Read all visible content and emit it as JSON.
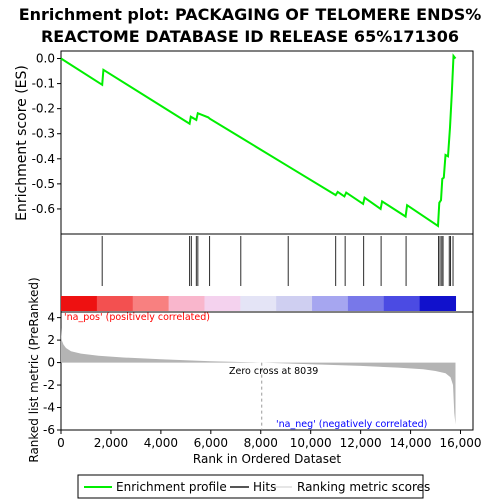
{
  "colors": {
    "es_line": "#00ee00",
    "hit_line": "#2b2b2b",
    "metric_fill": "#b4b4b4",
    "axis": "#000000",
    "legend_border": "#000000",
    "pos_label": "#ff0000",
    "neg_label": "#0000ff",
    "zero_dash": "#9a9a9a",
    "band": [
      "#ee1111",
      "#f35050",
      "#f88080",
      "#f9b6cc",
      "#f4d2ee",
      "#e4e4f6",
      "#cfcff1",
      "#a6a6f0",
      "#7878e9",
      "#4b4be3",
      "#1111cc"
    ]
  },
  "chart_data": [
    {
      "type": "line",
      "title": [
        "Enrichment plot: PACKAGING OF TELOMERE ENDS%",
        "REACTOME DATABASE ID RELEASE 65%171306"
      ],
      "ylabel": "Enrichment score (ES)",
      "ylim": [
        -0.7,
        0.03
      ],
      "yticks": [
        0.0,
        -0.1,
        -0.2,
        -0.3,
        -0.4,
        -0.5,
        -0.6
      ],
      "ytick_labels": [
        "0.0",
        "-0.1",
        "-0.2",
        "-0.3",
        "-0.4",
        "-0.5",
        "-0.6"
      ],
      "xlim": [
        0,
        16500
      ],
      "grid": false,
      "series": [
        {
          "name": "Enrichment profile",
          "x": [
            0,
            1650,
            1700,
            5150,
            5200,
            5420,
            5480,
            5900,
            5960,
            7200,
            9100,
            11000,
            11080,
            11350,
            11420,
            12100,
            12160,
            12800,
            12860,
            13800,
            13860,
            15100,
            15150,
            15220,
            15270,
            15330,
            15400,
            15500,
            15580,
            15650,
            15720,
            15800
          ],
          "y": [
            0.0,
            -0.105,
            -0.045,
            -0.26,
            -0.232,
            -0.245,
            -0.218,
            -0.235,
            -0.24,
            -0.315,
            -0.43,
            -0.545,
            -0.532,
            -0.55,
            -0.535,
            -0.58,
            -0.555,
            -0.6,
            -0.57,
            -0.63,
            -0.585,
            -0.668,
            -0.575,
            -0.565,
            -0.48,
            -0.475,
            -0.385,
            -0.39,
            -0.275,
            -0.14,
            0.01,
            0.0
          ]
        }
      ]
    },
    {
      "type": "scatter",
      "legend_name": "Hits",
      "hit_positions": [
        1650,
        5150,
        5220,
        5420,
        5480,
        5950,
        7200,
        9100,
        11000,
        11380,
        12120,
        12820,
        13820,
        15120,
        15180,
        15250,
        15300,
        15550,
        15600,
        15700
      ]
    },
    {
      "type": "area",
      "xlabel": "Rank in Ordered Dataset",
      "ylabel": "Ranked list metric (PreRanked)",
      "ylim": [
        -6,
        4.5
      ],
      "yticks": [
        4,
        2,
        0,
        -2,
        -4,
        -6
      ],
      "ytick_labels": [
        "4",
        "2",
        "0",
        "-2",
        "-4",
        "-6"
      ],
      "xlim": [
        0,
        16500
      ],
      "xticks": [
        0,
        2000,
        4000,
        6000,
        8000,
        10000,
        12000,
        14000,
        16000
      ],
      "xtick_labels": [
        "0",
        "2,000",
        "4,000",
        "6,000",
        "8,000",
        "10,000",
        "12,000",
        "14,000",
        "16,000"
      ],
      "series": [
        {
          "name": "Ranking metric scores",
          "x": [
            0,
            30,
            100,
            200,
            400,
            800,
            1500,
            2500,
            4000,
            6000,
            8039,
            10000,
            12000,
            13500,
            14500,
            15000,
            15400,
            15600,
            15700,
            15750,
            15800
          ],
          "y": [
            3.1,
            2.0,
            1.6,
            1.3,
            1.0,
            0.8,
            0.6,
            0.45,
            0.3,
            0.12,
            0.0,
            -0.15,
            -0.3,
            -0.45,
            -0.6,
            -0.75,
            -0.95,
            -1.3,
            -2.0,
            -4.5,
            -5.5
          ]
        }
      ],
      "annotations": {
        "zero_cross_label": "Zero cross at 8039",
        "zero_cross_x": 8039,
        "pos_label": "'na_pos' (positively correlated)",
        "neg_label": "'na_neg' (negatively correlated)"
      }
    }
  ],
  "legend": {
    "items": [
      {
        "label": "Enrichment profile",
        "color": "#00ee00",
        "kind": "line"
      },
      {
        "label": "Hits",
        "color": "#555555",
        "kind": "line"
      },
      {
        "label": "Ranking metric scores",
        "color": "#cccccc",
        "kind": "line"
      }
    ]
  }
}
